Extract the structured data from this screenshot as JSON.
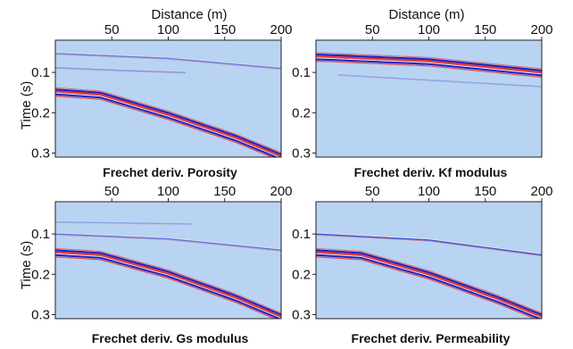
{
  "figure": {
    "xlabel": "Distance (m)",
    "ylabel": "Time (s)",
    "background_color": "#b9d3f2",
    "positive_color": "#e23a3a",
    "negative_color": "#1a22c8"
  },
  "chart_data": [
    {
      "type": "heatmap",
      "title": "Frechet deriv.  Porosity",
      "xlabel": "Distance (m)",
      "ylabel": "Time (s)",
      "xlim": [
        0,
        200
      ],
      "ylim": [
        0.02,
        0.31
      ],
      "xticks": [
        "50",
        "100",
        "150",
        "200"
      ],
      "yticks": [
        "0.1",
        "0.2",
        "0.3"
      ],
      "events": [
        {
          "x": [
            0,
            40,
            100,
            160,
            200
          ],
          "t": [
            0.147,
            0.155,
            0.205,
            0.262,
            0.308
          ],
          "amplitude": 1.0
        },
        {
          "x": [
            0,
            100,
            200
          ],
          "t": [
            0.053,
            0.065,
            0.09
          ],
          "amplitude": 0.35
        },
        {
          "x": [
            0,
            60,
            115
          ],
          "t": [
            0.088,
            0.095,
            0.1
          ],
          "amplitude": 0.2
        }
      ]
    },
    {
      "type": "heatmap",
      "title": "Frechet deriv.  Kf modulus",
      "xlabel": "Distance (m)",
      "ylabel": "Time (s)",
      "xlim": [
        0,
        200
      ],
      "ylim": [
        0.02,
        0.31
      ],
      "xticks": [
        "50",
        "100",
        "150",
        "200"
      ],
      "yticks": [
        "0.1",
        "0.2",
        "0.3"
      ],
      "events": [
        {
          "x": [
            0,
            100,
            200
          ],
          "t": [
            0.06,
            0.072,
            0.1
          ],
          "amplitude": 1.0
        },
        {
          "x": [
            20,
            120,
            200
          ],
          "t": [
            0.106,
            0.122,
            0.135
          ],
          "amplitude": 0.12
        }
      ]
    },
    {
      "type": "heatmap",
      "title": "Frechet deriv.  Gs modulus",
      "xlabel": "Distance (m)",
      "ylabel": "Time (s)",
      "xlim": [
        0,
        200
      ],
      "ylim": [
        0.02,
        0.31
      ],
      "xticks": [
        "50",
        "100",
        "150",
        "200"
      ],
      "yticks": [
        "0.1",
        "0.2",
        "0.3"
      ],
      "events": [
        {
          "x": [
            0,
            40,
            100,
            160,
            200
          ],
          "t": [
            0.145,
            0.152,
            0.198,
            0.258,
            0.305
          ],
          "amplitude": 1.0
        },
        {
          "x": [
            0,
            100,
            200
          ],
          "t": [
            0.1,
            0.112,
            0.14
          ],
          "amplitude": 0.4
        },
        {
          "x": [
            0,
            120
          ],
          "t": [
            0.07,
            0.075
          ],
          "amplitude": 0.12
        }
      ]
    },
    {
      "type": "heatmap",
      "title": "Frechet deriv.  Permeability",
      "xlabel": "Distance (m)",
      "ylabel": "Time (s)",
      "xlim": [
        0,
        200
      ],
      "ylim": [
        0.02,
        0.31
      ],
      "xticks": [
        "50",
        "100",
        "150",
        "200"
      ],
      "yticks": [
        "0.1",
        "0.2",
        "0.3"
      ],
      "events": [
        {
          "x": [
            0,
            40,
            100,
            160,
            200
          ],
          "t": [
            0.145,
            0.152,
            0.2,
            0.26,
            0.305
          ],
          "amplitude": 1.0
        },
        {
          "x": [
            0,
            100,
            200
          ],
          "t": [
            0.1,
            0.115,
            0.152
          ],
          "amplitude": 0.6
        }
      ]
    }
  ]
}
